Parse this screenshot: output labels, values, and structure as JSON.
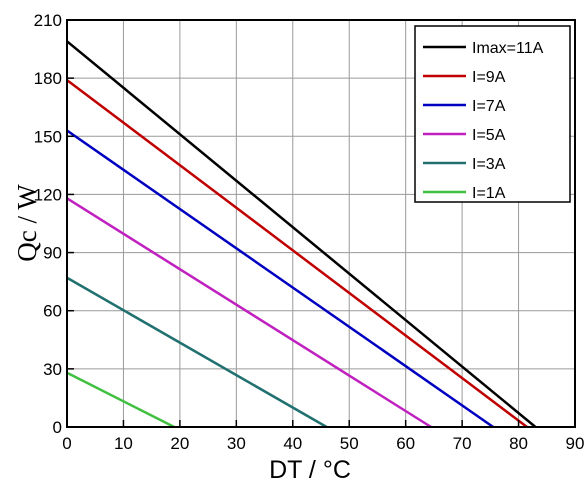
{
  "chart_data": {
    "type": "line",
    "xlabel": "DT / °C",
    "ylabel": "Qc / W",
    "xlim": [
      0,
      90
    ],
    "ylim": [
      0,
      210
    ],
    "xticks": [
      "0",
      "10",
      "20",
      "30",
      "40",
      "50",
      "60",
      "70",
      "80",
      "90"
    ],
    "yticks": [
      "0",
      "30",
      "60",
      "90",
      "120",
      "150",
      "180",
      "210"
    ],
    "grid": true,
    "legend_position": "top-right",
    "series": [
      {
        "name": "Imax=11A",
        "color": "#000000",
        "x": [
          0,
          83
        ],
        "y": [
          199,
          0
        ]
      },
      {
        "name": "I=9A",
        "color": "#c00000",
        "x": [
          0,
          81.5
        ],
        "y": [
          179,
          0
        ]
      },
      {
        "name": "I=7A",
        "color": "#0000c0",
        "x": [
          0,
          75.5
        ],
        "y": [
          153,
          0
        ]
      },
      {
        "name": "I=5A",
        "color": "#c020c0",
        "x": [
          0,
          64.5
        ],
        "y": [
          118,
          0
        ]
      },
      {
        "name": "I=3A",
        "color": "#207070",
        "x": [
          0,
          46
        ],
        "y": [
          77,
          0
        ]
      },
      {
        "name": "I=1A",
        "color": "#40c040",
        "x": [
          0,
          19
        ],
        "y": [
          28,
          0
        ]
      }
    ]
  }
}
